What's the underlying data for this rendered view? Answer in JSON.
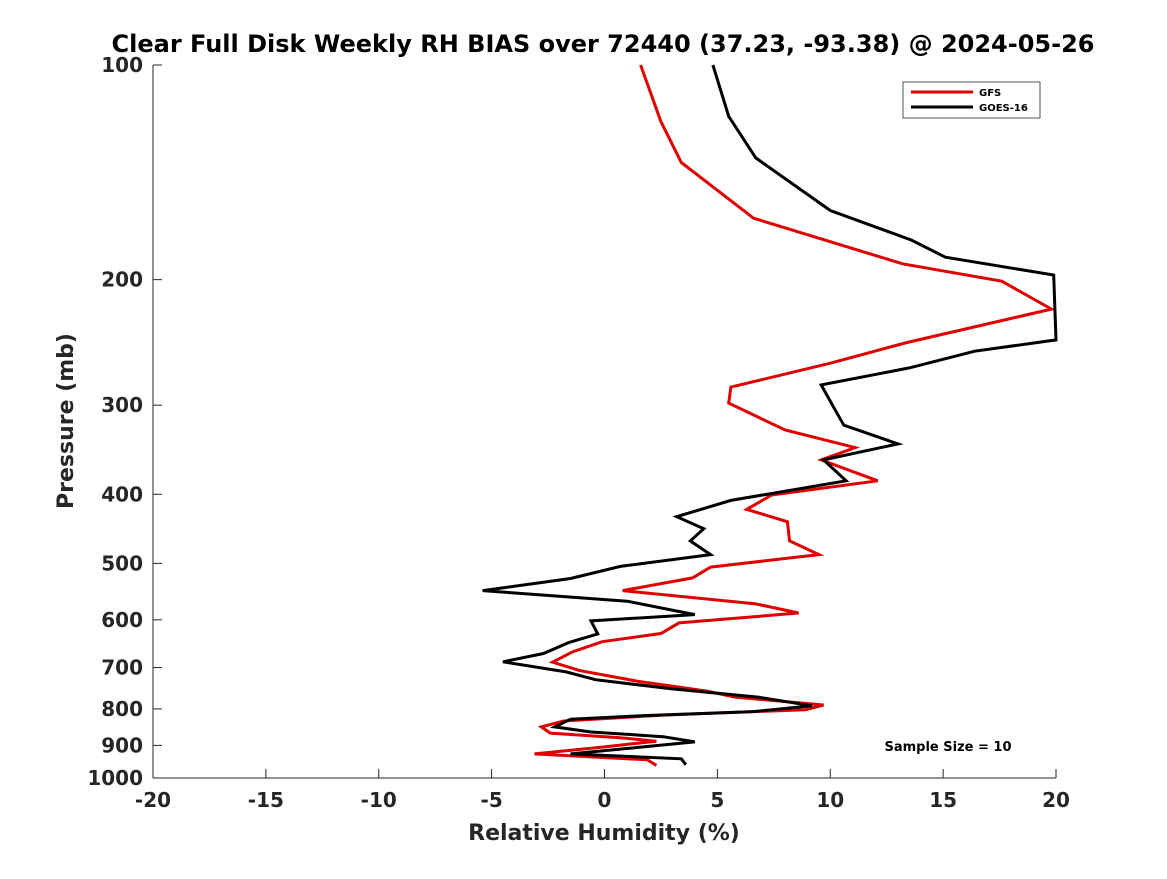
{
  "chart_data": {
    "type": "line",
    "title": "Clear Full Disk Weekly RH BIAS over 72440 (37.23, -93.38) @ 2024-05-26",
    "xlabel": "Relative Humidity (%)",
    "ylabel": "Pressure (mb)",
    "xlim": [
      -20,
      20
    ],
    "ylim": [
      100,
      1000
    ],
    "y_scale": "log",
    "y_inverted": true,
    "grid": false,
    "x_ticks": [
      -20,
      -15,
      -10,
      -5,
      0,
      5,
      10,
      15,
      20
    ],
    "x_tick_labels": [
      "-20",
      "-15",
      "-10",
      "-5",
      "0",
      "5",
      "10",
      "15",
      "20"
    ],
    "y_ticks": [
      100,
      200,
      300,
      400,
      500,
      600,
      700,
      800,
      900,
      1000
    ],
    "y_tick_labels": [
      "100",
      "200",
      "300",
      "400",
      "500",
      "600",
      "700",
      "800",
      "900",
      "1000"
    ],
    "legend_position": "top-right",
    "annotation": "Sample Size = 10",
    "series": [
      {
        "name": "GFS",
        "color": "#e00000",
        "points": [
          [
            1.6,
            100
          ],
          [
            2.5,
            120
          ],
          [
            3.4,
            137
          ],
          [
            6.6,
            164
          ],
          [
            13.2,
            190
          ],
          [
            17.6,
            201
          ],
          [
            19.8,
            220
          ],
          [
            13.4,
            245
          ],
          [
            10.0,
            262
          ],
          [
            5.6,
            283
          ],
          [
            5.5,
            298
          ],
          [
            8.0,
            325
          ],
          [
            11.1,
            344
          ],
          [
            9.6,
            358
          ],
          [
            12.1,
            383
          ],
          [
            7.4,
            401
          ],
          [
            6.3,
            420
          ],
          [
            8.1,
            437
          ],
          [
            8.2,
            465
          ],
          [
            9.5,
            486
          ],
          [
            4.7,
            506
          ],
          [
            3.9,
            524
          ],
          [
            0.8,
            546
          ],
          [
            6.7,
            570
          ],
          [
            8.6,
            587
          ],
          [
            3.3,
            606
          ],
          [
            2.5,
            627
          ],
          [
            -0.1,
            644
          ],
          [
            -1.4,
            665
          ],
          [
            -2.3,
            688
          ],
          [
            -1.1,
            707
          ],
          [
            1.5,
            732
          ],
          [
            4.5,
            755
          ],
          [
            5.8,
            770
          ],
          [
            9.7,
            790
          ],
          [
            8.9,
            802
          ],
          [
            2.7,
            816
          ],
          [
            -1.8,
            832
          ],
          [
            -2.8,
            848
          ],
          [
            -2.4,
            865
          ],
          [
            0.7,
            878
          ],
          [
            2.3,
            888
          ],
          [
            -0.1,
            905
          ],
          [
            -3.1,
            925
          ],
          [
            1.9,
            943
          ],
          [
            2.3,
            960
          ]
        ]
      },
      {
        "name": "GOES-16",
        "color": "#000000",
        "points": [
          [
            4.8,
            100
          ],
          [
            5.5,
            118
          ],
          [
            6.7,
            135
          ],
          [
            10.0,
            160
          ],
          [
            13.6,
            176
          ],
          [
            15.1,
            186
          ],
          [
            19.9,
            197
          ],
          [
            20.0,
            243
          ],
          [
            16.4,
            252
          ],
          [
            13.5,
            266
          ],
          [
            9.6,
            281
          ],
          [
            10.1,
            300
          ],
          [
            10.6,
            320
          ],
          [
            13.0,
            340
          ],
          [
            9.7,
            358
          ],
          [
            10.7,
            383
          ],
          [
            5.6,
            408
          ],
          [
            3.2,
            430
          ],
          [
            4.4,
            447
          ],
          [
            3.8,
            465
          ],
          [
            4.7,
            486
          ],
          [
            0.7,
            505
          ],
          [
            -1.5,
            525
          ],
          [
            -5.4,
            546
          ],
          [
            1.0,
            565
          ],
          [
            4.0,
            590
          ],
          [
            -0.6,
            602
          ],
          [
            -0.3,
            628
          ],
          [
            -1.6,
            646
          ],
          [
            -2.7,
            669
          ],
          [
            -4.5,
            687
          ],
          [
            -1.7,
            710
          ],
          [
            -0.4,
            728
          ],
          [
            3.0,
            750
          ],
          [
            6.8,
            770
          ],
          [
            9.2,
            792
          ],
          [
            6.6,
            807
          ],
          [
            1.6,
            818
          ],
          [
            -1.5,
            827
          ],
          [
            -2.2,
            848
          ],
          [
            -0.6,
            862
          ],
          [
            2.6,
            875
          ],
          [
            4.0,
            890
          ],
          [
            2.4,
            900
          ],
          [
            -1.5,
            925
          ],
          [
            3.4,
            940
          ],
          [
            3.6,
            958
          ]
        ]
      }
    ]
  }
}
